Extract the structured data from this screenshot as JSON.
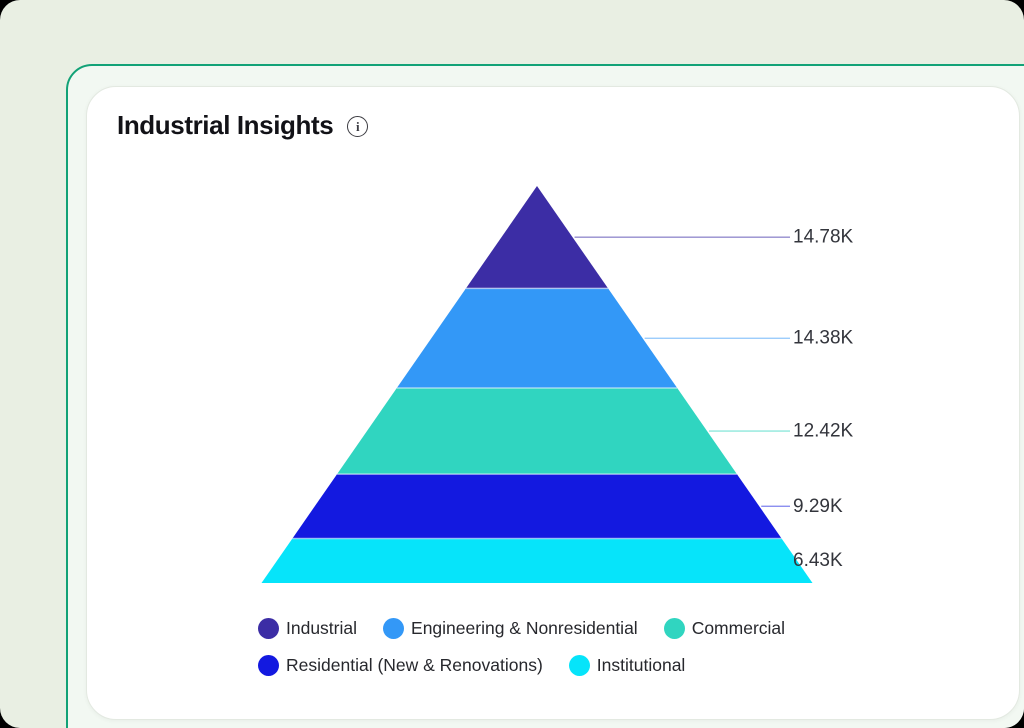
{
  "card": {
    "title": "Industrial Insights",
    "info_icon": "info-icon",
    "info_glyph": "i"
  },
  "colors": {
    "page_background": "#e9efe3",
    "card_border_accent": "#12a277",
    "card_fill": "#f2f8f2",
    "inner_card_fill": "#ffffff",
    "value_label_text": "#33353c",
    "legend_text": "#27282d"
  },
  "chart_data": {
    "type": "pyramid",
    "title": "Industrial Insights",
    "legend_position": "bottom",
    "grid": false,
    "series": [
      {
        "name": "Industrial",
        "value": 14780,
        "label": "14.78K",
        "color": "#3c2da5"
      },
      {
        "name": "Engineering & Nonresidential",
        "value": 14380,
        "label": "14.38K",
        "color": "#3398f7"
      },
      {
        "name": "Commercial",
        "value": 12420,
        "label": "12.42K",
        "color": "#30d5c0"
      },
      {
        "name": "Residential (New & Renovations)",
        "value": 9290,
        "label": "9.29K",
        "color": "#1319e0"
      },
      {
        "name": "Institutional",
        "value": 6430,
        "label": "6.43K",
        "color": "#06e4fa"
      }
    ]
  }
}
